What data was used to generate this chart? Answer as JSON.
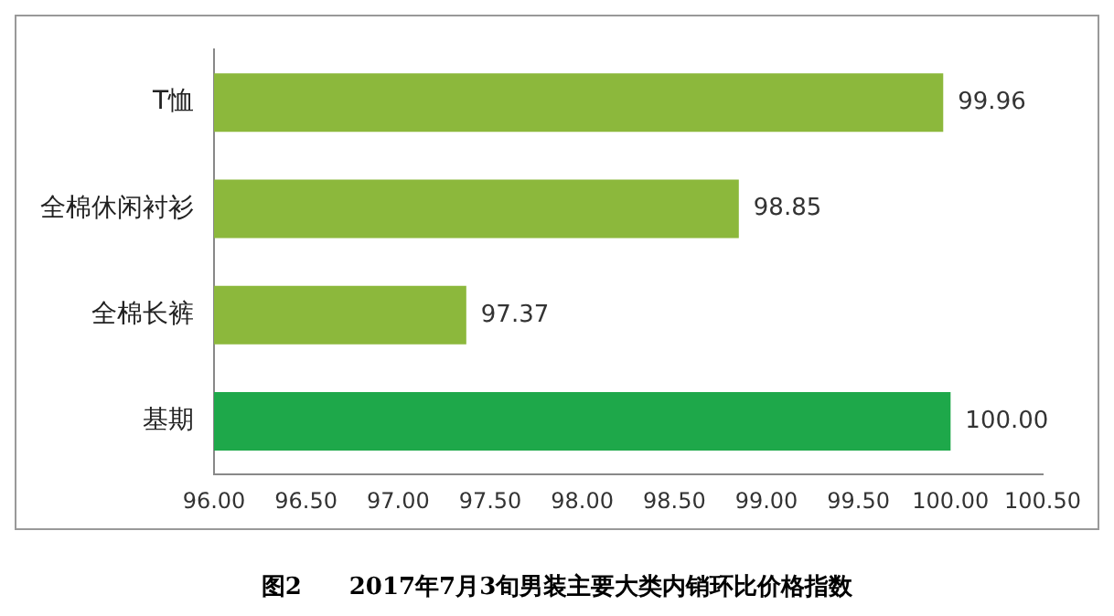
{
  "chart_data": {
    "type": "bar",
    "orientation": "horizontal",
    "title": "图2　　2017年7月3旬男装主要大类内销环比价格指数",
    "categories": [
      "T恤",
      "全棉休闲衬衫",
      "全棉长裤",
      "基期"
    ],
    "values": [
      99.96,
      98.85,
      97.37,
      100.0
    ],
    "value_labels": [
      "99.96",
      "98.85",
      "97.37",
      "100.00"
    ],
    "colors": [
      "#8cb83c",
      "#8cb83c",
      "#8cb83c",
      "#1ea84a"
    ],
    "xlim": [
      96,
      100.5
    ],
    "xticks": [
      {
        "value": 96,
        "label": "96.00"
      },
      {
        "value": 96.5,
        "label": "96.50"
      },
      {
        "value": 97,
        "label": "97.00"
      },
      {
        "value": 97.5,
        "label": "97.50"
      },
      {
        "value": 98,
        "label": "98.00"
      },
      {
        "value": 98.5,
        "label": "98.50"
      },
      {
        "value": 99,
        "label": "99.00"
      },
      {
        "value": 99.5,
        "label": "99.50"
      },
      {
        "value": 100,
        "label": "100.00"
      },
      {
        "value": 100.5,
        "label": "100.50"
      }
    ],
    "grid": false,
    "legend": false
  }
}
